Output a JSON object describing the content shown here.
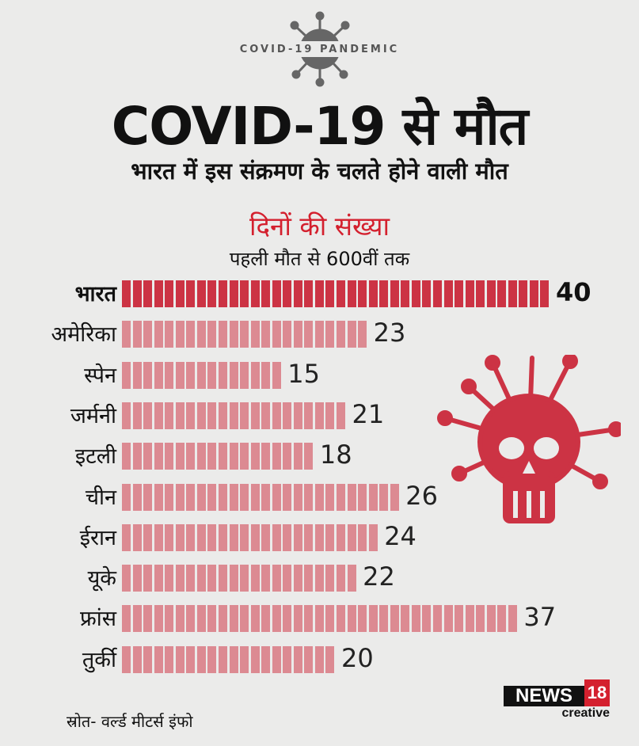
{
  "header": {
    "badge": "COVID-19 PANDEMIC",
    "title": "COVID-19 से मौत",
    "subtitle": "भारत में इस संक्रमण के चलते होने वाली मौत"
  },
  "chart_data": {
    "type": "bar",
    "orientation": "horizontal",
    "title": "दिनों की संख्या",
    "subtitle": "पहली मौत से 600वीं तक",
    "categories": [
      "भारत",
      "अमेरिका",
      "स्पेन",
      "जर्मनी",
      "इटली",
      "चीन",
      "ईरान",
      "यूके",
      "फ्रांस",
      "तुर्की"
    ],
    "values": [
      40,
      23,
      15,
      21,
      18,
      26,
      24,
      22,
      37,
      20
    ],
    "labels": [
      "40",
      "23",
      "15",
      "21",
      "18",
      "26",
      "24",
      "22",
      "37",
      "20"
    ],
    "highlight": "भारत",
    "colors": {
      "highlight": "#cc3344",
      "default": "#dc8a92"
    }
  },
  "footer": {
    "source": "स्रोत- वर्ल्ड मीटर्स इंफो",
    "logo": "NEWS18 creative"
  }
}
